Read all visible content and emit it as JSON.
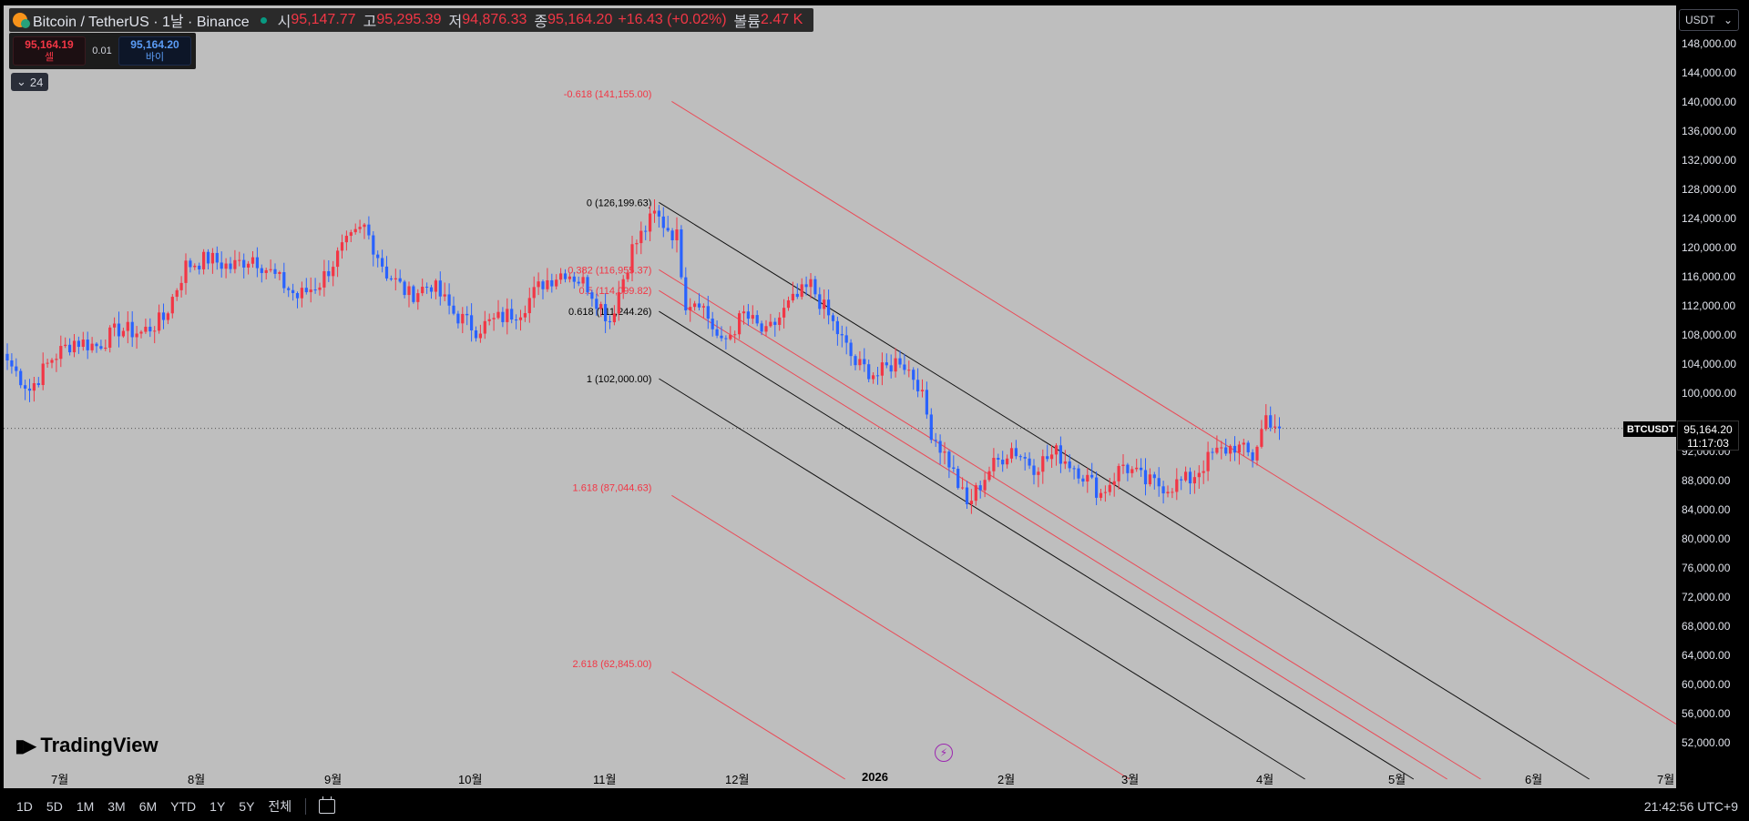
{
  "legend": {
    "symbol_title": "Bitcoin / TetherUS · 1날 · Binance",
    "open_label": "시",
    "open_value": "95,147.77",
    "high_label": "고",
    "high_value": "95,295.39",
    "low_label": "저",
    "low_value": "94,876.33",
    "close_label": "종",
    "close_value": "95,164.20",
    "change_value": "+16.43 (+0.02%)",
    "volume_label": "볼륨",
    "volume_value": "2.47 K"
  },
  "trade": {
    "sell_price": "95,164.19",
    "sell_label": "셀",
    "spread": "0.01",
    "buy_price": "95,164.20",
    "buy_label": "바이"
  },
  "collapse_count": "24",
  "currency": "USDT",
  "symbol_tag": "BTCUSDT",
  "last_price": "95,164.20",
  "countdown": "11:17:03",
  "brand": "TradingView",
  "clock": "21:42:56 UTC+9",
  "ranges": [
    "1D",
    "5D",
    "1M",
    "3M",
    "6M",
    "YTD",
    "1Y",
    "5Y",
    "전체"
  ],
  "colors": {
    "up": "#f23645",
    "down": "#2962ff",
    "fib_red": "#f23645",
    "fib_black": "#000000",
    "plot_bg": "#bebebe"
  },
  "icons": {
    "settings": "gear-icon",
    "goto": "calendar-goto-icon",
    "flash": "lightning-icon",
    "coin": "bitcoin-icon"
  },
  "chart_data": {
    "type": "candlestick",
    "interval": "1D",
    "y_axis": {
      "ticks": [
        148000,
        144000,
        140000,
        136000,
        132000,
        128000,
        124000,
        120000,
        116000,
        112000,
        108000,
        104000,
        100000,
        92000,
        88000,
        84000,
        80000,
        76000,
        72000,
        68000,
        64000,
        60000,
        56000,
        52000
      ],
      "tick_labels": [
        "148,000.00",
        "144,000.00",
        "140,000.00",
        "136,000.00",
        "132,000.00",
        "128,000.00",
        "124,000.00",
        "120,000.00",
        "116,000.00",
        "112,000.00",
        "108,000.00",
        "104,000.00",
        "100,000.00",
        "92,000.00",
        "88,000.00",
        "84,000.00",
        "80,000.00",
        "76,000.00",
        "72,000.00",
        "68,000.00",
        "64,000.00",
        "60,000.00",
        "56,000.00",
        "52,000.00"
      ],
      "range": [
        49000,
        150500
      ]
    },
    "x_axis": {
      "labels": [
        "7월",
        "8월",
        "9월",
        "10월",
        "11월",
        "12월",
        "2026",
        "2월",
        "3월",
        "4월",
        "5월",
        "6월",
        "7월"
      ],
      "year_label_index": 6,
      "range_days": [
        0,
        390
      ]
    },
    "last_price": 95164.2,
    "price_anchors": [
      [
        0,
        104500
      ],
      [
        5,
        100500
      ],
      [
        10,
        104800
      ],
      [
        15,
        107200
      ],
      [
        20,
        106500
      ],
      [
        25,
        108800
      ],
      [
        30,
        108300
      ],
      [
        35,
        110200
      ],
      [
        40,
        117500
      ],
      [
        45,
        118500
      ],
      [
        50,
        117300
      ],
      [
        55,
        118800
      ],
      [
        60,
        116000
      ],
      [
        65,
        113200
      ],
      [
        70,
        115200
      ],
      [
        75,
        119800
      ],
      [
        80,
        122800
      ],
      [
        85,
        116500
      ],
      [
        90,
        113500
      ],
      [
        95,
        115000
      ],
      [
        100,
        111000
      ],
      [
        105,
        108800
      ],
      [
        110,
        110200
      ],
      [
        115,
        111500
      ],
      [
        120,
        115200
      ],
      [
        125,
        116800
      ],
      [
        130,
        114800
      ],
      [
        135,
        110000
      ],
      [
        140,
        119800
      ],
      [
        145,
        124500
      ],
      [
        150,
        121500
      ],
      [
        152,
        112500
      ],
      [
        155,
        113000
      ],
      [
        160,
        106500
      ],
      [
        165,
        110800
      ],
      [
        170,
        108000
      ],
      [
        175,
        112000
      ],
      [
        180,
        114800
      ],
      [
        185,
        109500
      ],
      [
        190,
        104000
      ],
      [
        195,
        102500
      ],
      [
        200,
        104800
      ],
      [
        204,
        101500
      ],
      [
        207,
        94800
      ],
      [
        211,
        90500
      ],
      [
        215,
        84500
      ],
      [
        220,
        89500
      ],
      [
        225,
        92500
      ],
      [
        230,
        90000
      ],
      [
        235,
        91800
      ],
      [
        240,
        89500
      ],
      [
        245,
        86200
      ],
      [
        250,
        90200
      ],
      [
        255,
        87800
      ],
      [
        260,
        87200
      ],
      [
        265,
        88200
      ],
      [
        270,
        91500
      ],
      [
        275,
        92800
      ],
      [
        279,
        91200
      ],
      [
        282,
        96800
      ],
      [
        285,
        95164.2
      ]
    ],
    "fib_channel": {
      "start_day": 146,
      "slope_per_day": -380,
      "levels": [
        {
          "label": "-0.618 (141,155.00)",
          "price": 141155.0,
          "color": "red"
        },
        {
          "label": "0 (126,199.63)",
          "price": 126199.63,
          "color": "black"
        },
        {
          "label": "0.382 (116,955.37)",
          "price": 116955.37,
          "color": "red"
        },
        {
          "label": "0.5 (114,099.82)",
          "price": 114099.82,
          "color": "red"
        },
        {
          "label": "0.618 (111,244.26)",
          "price": 111244.26,
          "color": "black"
        },
        {
          "label": "1 (102,000.00)",
          "price": 102000.0,
          "color": "black"
        },
        {
          "label": "1.618 (87,044.63)",
          "price": 87044.63,
          "color": "red"
        },
        {
          "label": "2.618 (62,845.00)",
          "price": 62845.0,
          "color": "red"
        }
      ]
    }
  }
}
